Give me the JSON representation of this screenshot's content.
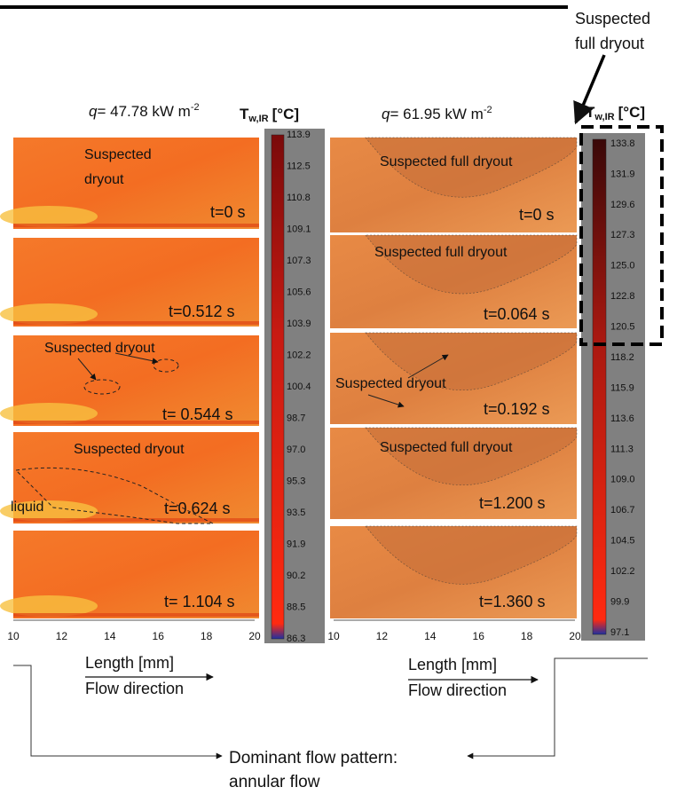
{
  "left_panel": {
    "q": "q",
    "flux": "= 47.78 kW m",
    "exp": "-2",
    "scale_title": {
      "symbol": "T",
      "subscript": "w,IR",
      "unit": "[°C]"
    },
    "scale_ticks": [
      "113.9",
      "112.5",
      "110.8",
      "109.1",
      "107.3",
      "105.6",
      "103.9",
      "102.2",
      "100.4",
      "98.7",
      "97.0",
      "95.3",
      "93.5",
      "91.9",
      "90.2",
      "88.5",
      "86.3"
    ],
    "frames": [
      {
        "annotation": [
          "Suspected",
          "dryout"
        ],
        "time": "t=0 s"
      },
      {
        "annotation": [],
        "time": "t=0.512 s"
      },
      {
        "annotation": [
          "Suspected dryout"
        ],
        "time": "t= 0.544 s"
      },
      {
        "annotation": [
          "Suspected dryout"
        ],
        "time": "t=0.624 s"
      },
      {
        "annotation": [],
        "time": "t= 1.104 s"
      }
    ],
    "liquid_label": "liquid",
    "x_ticks": [
      "10",
      "12",
      "14",
      "16",
      "18",
      "20"
    ],
    "x_label": "Length [mm]",
    "flow_label": "Flow direction"
  },
  "right_panel": {
    "q": "q",
    "flux": "= 61.95 kW m",
    "exp": "-2",
    "scale_title": {
      "symbol": "T",
      "subscript": "w,IR",
      "unit": "[°C]"
    },
    "scale_ticks": [
      "133.8",
      "131.9",
      "129.6",
      "127.3",
      "125.0",
      "122.8",
      "120.5",
      "118.2",
      "115.9",
      "113.6",
      "111.3",
      "109.0",
      "106.7",
      "104.5",
      "102.2",
      "99.9",
      "97.1"
    ],
    "frames": [
      {
        "annotation": [
          "Suspected full dryout"
        ],
        "time": "t=0 s"
      },
      {
        "annotation": [
          "Suspected full dryout"
        ],
        "time": "t=0.064 s"
      },
      {
        "annotation": [
          "Suspected dryout"
        ],
        "time": "t=0.192 s"
      },
      {
        "annotation": [
          "Suspected full dryout"
        ],
        "time": "t=1.200 s"
      },
      {
        "annotation": [],
        "time": "t=1.360 s"
      }
    ],
    "top_note": [
      "Suspected",
      "full dryout"
    ],
    "x_ticks": [
      "10",
      "12",
      "14",
      "16",
      "18",
      "20"
    ],
    "x_label": "Length [mm]",
    "flow_label": "Flow direction"
  },
  "footer": [
    "Dominant flow pattern:",
    "annular flow"
  ]
}
